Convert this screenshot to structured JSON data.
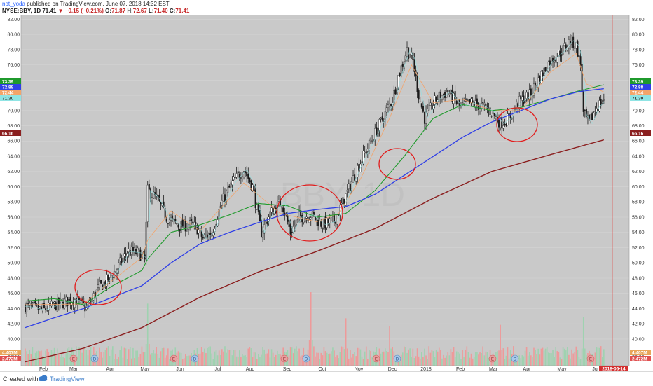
{
  "header": {
    "user": "not_yoda",
    "published": " published on TradingView.com, June 07, 2018 14:32 EST",
    "symbol": "NYSE:BBY, 1D",
    "last": "71.41",
    "change": "−0.15 (−0.21%)",
    "o_label": "O:",
    "o": "71.87",
    "h_label": "H:",
    "h": "72.67",
    "l_label": "L:",
    "l": "71.40",
    "c_label": "C:",
    "c": "71.41"
  },
  "footer": {
    "created": "Created with",
    "brand": "TradingView"
  },
  "colors": {
    "ema20": "#f3a46a",
    "sma50": "#1f9a2c",
    "sma100": "#2f3fe6",
    "sma200": "#8b1f1f",
    "fast": "#8fe4e4",
    "annotation": "#e11d1d",
    "up_volume": "#9fd2b0",
    "down_volume": "#ee9a9a"
  },
  "chart_data": {
    "type": "candlestick",
    "y_range": [
      36.5,
      82.5
    ],
    "y_ticks": [
      "38.00",
      "40.00",
      "42.00",
      "44.00",
      "46.00",
      "48.00",
      "50.00",
      "52.00",
      "54.00",
      "56.00",
      "58.00",
      "60.00",
      "62.00",
      "64.00",
      "66.00",
      "68.00",
      "70.00",
      "72.00",
      "74.00",
      "76.00",
      "78.00",
      "80.00",
      "82.00"
    ],
    "x_labels": [
      "Feb",
      "Mar",
      "Apr",
      "May",
      "Jun",
      "Jul",
      "Aug",
      "Sep",
      "Oct",
      "Nov",
      "Dec",
      "2018",
      "Feb",
      "Mar",
      "Apr",
      "May",
      "Jun"
    ],
    "date_badge": "2018-06-14",
    "price_badges": [
      {
        "label": "73.39",
        "value": 73.39,
        "series": "SMA 50"
      },
      {
        "label": "72.88",
        "value": 72.88,
        "series": "SMA 100"
      },
      {
        "label": "72.44",
        "value": 72.44,
        "series": "EMA 20"
      },
      {
        "label": "71.30",
        "value": 71.3,
        "series": "fast MA"
      },
      {
        "label": "66.16",
        "value": 66.16,
        "series": "SMA 200"
      }
    ],
    "volume_badges": [
      "4.407M",
      "2.472M"
    ],
    "price_anchors": [
      [
        0,
        44.3
      ],
      [
        12,
        43.8
      ],
      [
        24,
        44.7
      ],
      [
        34,
        45.2
      ],
      [
        42,
        44.0
      ],
      [
        46,
        45.3
      ],
      [
        50,
        46.6
      ],
      [
        55,
        47.5
      ],
      [
        62,
        49.0
      ],
      [
        70,
        51.5
      ],
      [
        78,
        51.3
      ],
      [
        82,
        50.4
      ],
      [
        84,
        59.5
      ],
      [
        90,
        58.5
      ],
      [
        97,
        56.0
      ],
      [
        106,
        54.8
      ],
      [
        114,
        55.0
      ],
      [
        118,
        54.5
      ],
      [
        122,
        53.2
      ],
      [
        128,
        54.0
      ],
      [
        135,
        58.0
      ],
      [
        142,
        60.5
      ],
      [
        150,
        62.3
      ],
      [
        156,
        60.0
      ],
      [
        162,
        54.0
      ],
      [
        168,
        56.5
      ],
      [
        176,
        58.0
      ],
      [
        182,
        54.0
      ],
      [
        188,
        56.0
      ],
      [
        196,
        56.3
      ],
      [
        204,
        55.0
      ],
      [
        212,
        55.5
      ],
      [
        220,
        58.8
      ],
      [
        228,
        62.5
      ],
      [
        236,
        65.5
      ],
      [
        244,
        68.5
      ],
      [
        252,
        71.5
      ],
      [
        256,
        74.5
      ],
      [
        262,
        78.0
      ],
      [
        266,
        76.5
      ],
      [
        270,
        72.0
      ],
      [
        274,
        69.0
      ],
      [
        282,
        71.5
      ],
      [
        290,
        72.5
      ],
      [
        298,
        70.5
      ],
      [
        306,
        71.0
      ],
      [
        314,
        70.5
      ],
      [
        320,
        69.8
      ],
      [
        326,
        68.3
      ],
      [
        332,
        69.0
      ],
      [
        338,
        71.0
      ],
      [
        346,
        72.0
      ],
      [
        352,
        74.0
      ],
      [
        360,
        76.5
      ],
      [
        368,
        77.8
      ],
      [
        374,
        79.2
      ],
      [
        378,
        78.5
      ],
      [
        381,
        76.0
      ],
      [
        383,
        69.5
      ],
      [
        387,
        68.3
      ],
      [
        392,
        70.5
      ],
      [
        397,
        71.41
      ]
    ],
    "series": [
      {
        "name": "EMA 20",
        "anchors": [
          [
            0,
            44.5
          ],
          [
            40,
            44.6
          ],
          [
            55,
            47.0
          ],
          [
            80,
            50.7
          ],
          [
            84,
            53.0
          ],
          [
            100,
            56.8
          ],
          [
            120,
            54.2
          ],
          [
            150,
            60.5
          ],
          [
            175,
            56.5
          ],
          [
            200,
            55.4
          ],
          [
            215,
            56.5
          ],
          [
            230,
            61.0
          ],
          [
            250,
            69.0
          ],
          [
            265,
            76.0
          ],
          [
            280,
            71.0
          ],
          [
            300,
            71.5
          ],
          [
            320,
            70.0
          ],
          [
            340,
            70.0
          ],
          [
            360,
            75.0
          ],
          [
            378,
            77.5
          ],
          [
            385,
            73.5
          ],
          [
            397,
            72.44
          ]
        ]
      },
      {
        "name": "SMA 50",
        "anchors": [
          [
            0,
            45.0
          ],
          [
            20,
            45.3
          ],
          [
            40,
            44.5
          ],
          [
            60,
            47.0
          ],
          [
            80,
            49.0
          ],
          [
            84,
            50.5
          ],
          [
            100,
            54.0
          ],
          [
            120,
            55.0
          ],
          [
            140,
            56.3
          ],
          [
            160,
            57.8
          ],
          [
            180,
            57.5
          ],
          [
            200,
            56.0
          ],
          [
            220,
            56.5
          ],
          [
            240,
            59.5
          ],
          [
            260,
            64.0
          ],
          [
            280,
            69.0
          ],
          [
            300,
            70.8
          ],
          [
            320,
            70.0
          ],
          [
            340,
            70.4
          ],
          [
            360,
            71.5
          ],
          [
            380,
            72.6
          ],
          [
            397,
            73.39
          ]
        ]
      },
      {
        "name": "SMA 100",
        "anchors": [
          [
            0,
            41.5
          ],
          [
            20,
            42.8
          ],
          [
            40,
            44.0
          ],
          [
            60,
            45.5
          ],
          [
            80,
            47.0
          ],
          [
            100,
            50.0
          ],
          [
            120,
            52.5
          ],
          [
            140,
            54.0
          ],
          [
            160,
            55.3
          ],
          [
            180,
            56.5
          ],
          [
            200,
            57.0
          ],
          [
            220,
            57.4
          ],
          [
            240,
            59.0
          ],
          [
            260,
            61.5
          ],
          [
            280,
            64.0
          ],
          [
            300,
            66.5
          ],
          [
            320,
            68.5
          ],
          [
            340,
            70.0
          ],
          [
            360,
            71.5
          ],
          [
            380,
            72.5
          ],
          [
            397,
            72.88
          ]
        ]
      },
      {
        "name": "SMA 200",
        "anchors": [
          [
            0,
            37.0
          ],
          [
            40,
            38.8
          ],
          [
            80,
            41.5
          ],
          [
            120,
            45.5
          ],
          [
            160,
            48.8
          ],
          [
            200,
            51.5
          ],
          [
            240,
            54.5
          ],
          [
            280,
            58.5
          ],
          [
            320,
            62.0
          ],
          [
            360,
            64.2
          ],
          [
            397,
            66.16
          ]
        ]
      }
    ],
    "volume": {
      "max_millions": 9.0,
      "spikes": [
        [
          84,
          7.6
        ],
        [
          196,
          9.0
        ],
        [
          220,
          5.8
        ],
        [
          250,
          4.8
        ],
        [
          326,
          5.0
        ],
        [
          383,
          6.0
        ]
      ]
    },
    "annotations": [
      "circle",
      "circle",
      "circle",
      "circle",
      "circle"
    ],
    "event_markers": [
      "E",
      "D",
      "E",
      "D",
      "E",
      "D",
      "E",
      "D",
      "E",
      "D",
      "E"
    ]
  }
}
